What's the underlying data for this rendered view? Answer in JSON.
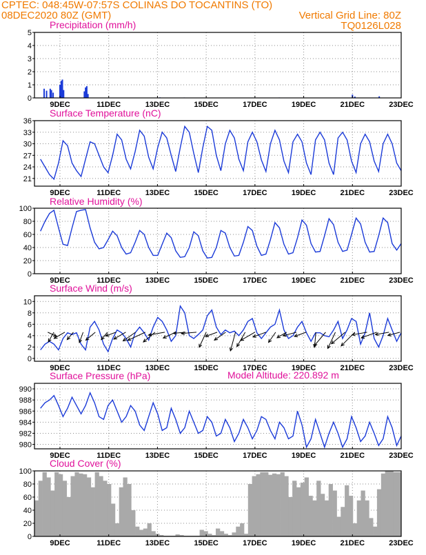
{
  "header": {
    "line1": "CPTEC:  048:45W-07:57S  COLINAS DO TOCANTINS (TO)",
    "line2_left": "08DEC2020 80Z (GMT)",
    "line2_right": "Vertical Grid Line: 80Z",
    "line3_right": "TQ0126L028"
  },
  "x_tick_labels": [
    "9DEC",
    "11DEC",
    "13DEC",
    "15DEC",
    "17DEC",
    "19DEC",
    "21DEC",
    "23DEC"
  ],
  "model_altitude": "Model Altitude: 220.892 m",
  "colors": {
    "header": "#f07a00",
    "title": "#e0109a",
    "series": "#1a3ad8",
    "cloud": "#a9a9a9"
  },
  "chart_data": [
    {
      "id": "precip",
      "type": "bar",
      "title": "Precipitation (mm/h)",
      "ylim": [
        0,
        5
      ],
      "yticks": [
        0,
        1,
        2,
        3,
        4,
        5
      ],
      "x_days_range": [
        8.2,
        23.0
      ],
      "bars": [
        {
          "day": 8.35,
          "value": 0.7
        },
        {
          "day": 8.45,
          "value": 0.55
        },
        {
          "day": 8.6,
          "value": 0.7
        },
        {
          "day": 8.65,
          "value": 0.6
        },
        {
          "day": 8.72,
          "value": 0.4
        },
        {
          "day": 9.0,
          "value": 1.0
        },
        {
          "day": 9.05,
          "value": 1.3
        },
        {
          "day": 9.1,
          "value": 1.4
        },
        {
          "day": 9.15,
          "value": 0.6
        },
        {
          "day": 10.0,
          "value": 0.5
        },
        {
          "day": 10.05,
          "value": 0.8
        },
        {
          "day": 10.1,
          "value": 0.9
        },
        {
          "day": 10.15,
          "value": 0.3
        },
        {
          "day": 13.1,
          "value": 0.04
        },
        {
          "day": 14.1,
          "value": 0.03
        },
        {
          "day": 18.0,
          "value": 0.03
        },
        {
          "day": 21.0,
          "value": 0.25
        },
        {
          "day": 21.1,
          "value": 0.1
        },
        {
          "day": 22.1,
          "value": 0.12
        }
      ]
    },
    {
      "id": "temp",
      "type": "line",
      "title": "Surface Temperature (nC)",
      "ylim": [
        19,
        36
      ],
      "yticks": [
        21,
        24,
        27,
        30,
        33,
        36
      ],
      "x_days_range": [
        8.2,
        23.0
      ],
      "series": [
        {
          "name": "temperature",
          "values": [
            26,
            24,
            22,
            20.8,
            25,
            30.8,
            29.5,
            25,
            23,
            21.5,
            26,
            30.5,
            30,
            27,
            24,
            22.5,
            27,
            32.5,
            31,
            26,
            23.5,
            28,
            33.5,
            32,
            26.5,
            23.5,
            29,
            33,
            31.5,
            27,
            22.8,
            29,
            34.5,
            33,
            27.5,
            22.5,
            29,
            34.5,
            33.5,
            27,
            23,
            30,
            33.5,
            31.5,
            26,
            23,
            30.5,
            33,
            30.5,
            25.8,
            22.8,
            30,
            33.5,
            31,
            25.5,
            22.5,
            30.5,
            32.5,
            30.5,
            25,
            22,
            31,
            33,
            31,
            25,
            22,
            31.5,
            33,
            31,
            25.5,
            22.5,
            30,
            32.5,
            30.5,
            25.5,
            22.8,
            30,
            32.5,
            30,
            25,
            23
          ]
        }
      ]
    },
    {
      "id": "rh",
      "type": "line",
      "title": "Relative Humidity (%)",
      "ylim": [
        0,
        100
      ],
      "yticks": [
        0,
        20,
        40,
        60,
        80,
        100
      ],
      "x_days_range": [
        8.2,
        23.0
      ],
      "series": [
        {
          "name": "humidity",
          "values": [
            65,
            80,
            92,
            97,
            70,
            45,
            43,
            70,
            95,
            97,
            98,
            70,
            48,
            38,
            40,
            52,
            65,
            58,
            40,
            30,
            32,
            48,
            66,
            60,
            40,
            28,
            28,
            45,
            62,
            55,
            35,
            25,
            26,
            40,
            64,
            58,
            35,
            24,
            25,
            40,
            66,
            62,
            40,
            27,
            28,
            48,
            72,
            66,
            42,
            28,
            30,
            52,
            78,
            70,
            45,
            30,
            32,
            55,
            82,
            74,
            46,
            33,
            34,
            58,
            84,
            75,
            48,
            34,
            36,
            60,
            85,
            76,
            48,
            33,
            34,
            58,
            85,
            78,
            46,
            36,
            46
          ]
        }
      ]
    },
    {
      "id": "wind",
      "type": "line",
      "title": "Surface Wind (m/s)",
      "ylim": [
        -0.5,
        11
      ],
      "yticks": [
        0,
        2,
        4,
        6,
        8,
        10
      ],
      "x_days_range": [
        8.2,
        23.0
      ],
      "series": [
        {
          "name": "wind_speed",
          "values": [
            1.5,
            2.5,
            3,
            2.5,
            1.5,
            3.5,
            4.5,
            4.2,
            4.5,
            2.5,
            1.5,
            5.5,
            6.5,
            5,
            2.5,
            1.2,
            3.5,
            5,
            4.5,
            3.5,
            2,
            4.5,
            5.5,
            4.5,
            3.2,
            5.5,
            7.2,
            6.5,
            5,
            3,
            4,
            9.2,
            8,
            4,
            3.5,
            4.2,
            5,
            7.5,
            8.5,
            5.5,
            4.2,
            5,
            4.5,
            4.8,
            4,
            5,
            6.5,
            7,
            4.5,
            3.5,
            4.5,
            5.5,
            6,
            8.5,
            5,
            3.5,
            4,
            5.5,
            6.5,
            4.5,
            3,
            4.5,
            4.5,
            4,
            3.8,
            5,
            6.5,
            3.5,
            5,
            7,
            6.5,
            2.5,
            4.5,
            8,
            3.5,
            2,
            4,
            7,
            5,
            3,
            4.5
          ]
        }
      ],
      "vectors": [
        {
          "day": 8.5,
          "angle": -25,
          "len": 14
        },
        {
          "day": 8.75,
          "angle": -120,
          "len": 16
        },
        {
          "day": 9.2,
          "angle": -150,
          "len": 18
        },
        {
          "day": 9.55,
          "angle": -130,
          "len": 14
        },
        {
          "day": 9.95,
          "angle": -110,
          "len": 16
        },
        {
          "day": 10.45,
          "angle": -140,
          "len": 18
        },
        {
          "day": 10.95,
          "angle": -130,
          "len": 14
        },
        {
          "day": 11.3,
          "angle": -160,
          "len": 16
        },
        {
          "day": 11.7,
          "angle": -150,
          "len": 20
        },
        {
          "day": 12.1,
          "angle": -145,
          "len": 22
        },
        {
          "day": 12.5,
          "angle": -155,
          "len": 28
        },
        {
          "day": 12.9,
          "angle": -140,
          "len": 22
        },
        {
          "day": 13.3,
          "angle": -170,
          "len": 24
        },
        {
          "day": 13.75,
          "angle": -155,
          "len": 20
        },
        {
          "day": 14.15,
          "angle": -175,
          "len": 18
        },
        {
          "day": 14.6,
          "angle": -175,
          "len": 22
        },
        {
          "day": 15.0,
          "angle": -115,
          "len": 24
        },
        {
          "day": 15.45,
          "angle": -160,
          "len": 18
        },
        {
          "day": 15.8,
          "angle": -145,
          "len": 20
        },
        {
          "day": 16.2,
          "angle": -105,
          "len": 28
        },
        {
          "day": 16.6,
          "angle": -120,
          "len": 24
        },
        {
          "day": 17.0,
          "angle": -150,
          "len": 24
        },
        {
          "day": 17.45,
          "angle": -160,
          "len": 20
        },
        {
          "day": 17.85,
          "angle": -125,
          "len": 18
        },
        {
          "day": 18.3,
          "angle": -150,
          "len": 16
        },
        {
          "day": 18.7,
          "angle": -165,
          "len": 20
        },
        {
          "day": 19.1,
          "angle": -160,
          "len": 18
        },
        {
          "day": 19.5,
          "angle": -95,
          "len": 22
        },
        {
          "day": 19.9,
          "angle": -130,
          "len": 26
        },
        {
          "day": 20.3,
          "angle": -115,
          "len": 26
        },
        {
          "day": 20.7,
          "angle": -140,
          "len": 26
        },
        {
          "day": 21.1,
          "angle": -135,
          "len": 28
        },
        {
          "day": 21.6,
          "angle": -170,
          "len": 22
        },
        {
          "day": 22.0,
          "angle": -160,
          "len": 24
        },
        {
          "day": 22.5,
          "angle": -170,
          "len": 20
        },
        {
          "day": 22.95,
          "angle": -165,
          "len": 18
        }
      ]
    },
    {
      "id": "pressure",
      "type": "line",
      "title": "Surface Pressure (hPa)",
      "ylim": [
        979.2,
        991
      ],
      "yticks": [
        980,
        982,
        984,
        986,
        988,
        990
      ],
      "x_days_range": [
        8.2,
        23.0
      ],
      "series": [
        {
          "name": "pressure",
          "values": [
            986.5,
            987.5,
            988,
            988.8,
            987,
            985,
            986.5,
            988.5,
            987,
            985.5,
            987,
            989.3,
            987.5,
            985,
            984.5,
            987,
            988,
            986,
            984,
            985,
            987,
            986,
            983.5,
            982.5,
            985,
            987.5,
            985.5,
            982.5,
            983,
            986.5,
            984.5,
            982,
            983,
            986,
            984,
            982,
            982.5,
            985,
            984,
            981.5,
            982,
            984.5,
            983,
            980.5,
            982,
            984.5,
            983,
            981,
            982.5,
            985,
            984.5,
            982.5,
            981,
            984,
            983,
            981,
            981.5,
            986,
            983.5,
            979.5,
            981,
            984.5,
            982,
            979.5,
            982,
            984,
            982,
            979.5,
            981,
            985,
            983,
            980.5,
            981.5,
            984,
            982,
            979.8,
            981,
            985,
            983,
            979.8,
            981.5
          ]
        }
      ]
    },
    {
      "id": "cloud",
      "type": "area",
      "title": "Cloud Cover (%)",
      "ylim": [
        0,
        100
      ],
      "yticks": [
        0,
        20,
        40,
        60,
        80,
        100
      ],
      "x_days_range": [
        7.95,
        23.0
      ],
      "series": [
        {
          "name": "cloud",
          "values": [
            55,
            85,
            98,
            90,
            70,
            98,
            95,
            85,
            60,
            92,
            98,
            96,
            95,
            90,
            75,
            98,
            92,
            85,
            80,
            50,
            20,
            75,
            90,
            80,
            40,
            15,
            10,
            12,
            20,
            8,
            4,
            2,
            1,
            1,
            1,
            3,
            2,
            1,
            1,
            1,
            1,
            10,
            8,
            4,
            2,
            12,
            8,
            4,
            2,
            6,
            15,
            20,
            4,
            80,
            92,
            95,
            98,
            98,
            94,
            96,
            95,
            98,
            92,
            60,
            85,
            75,
            82,
            90,
            62,
            55,
            85,
            65,
            55,
            80,
            70,
            30,
            45,
            78,
            62,
            20,
            55,
            70,
            55,
            28,
            15,
            72,
            96,
            100,
            100,
            98,
            98
          ]
        }
      ]
    }
  ]
}
